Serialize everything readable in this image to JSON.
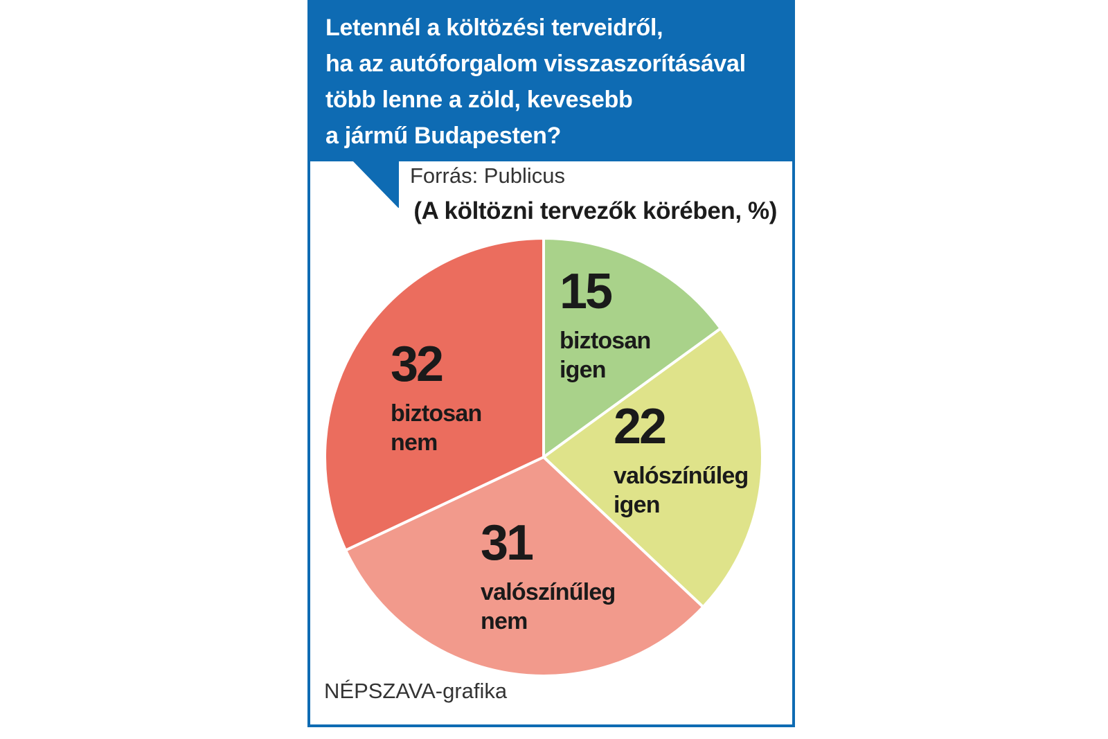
{
  "header": {
    "title": "Letennél a költözési terveidről,\nha az autóforgalom visszaszorításával\ntöbb lenne a zöld, kevesebb\na jármű Budapesten?"
  },
  "source": "Forrás: Publicus",
  "credit": "NÉPSZAVA-grafika",
  "colors": {
    "brand_blue": "#0e6bb3",
    "biztosan_igen": "#a9d28a",
    "valoszinuleg_igen": "#dfe38a",
    "valoszinuleg_nem": "#f29a8c",
    "biztosan_nem": "#eb6d5e"
  },
  "chart_data": {
    "type": "pie",
    "title": "(A költözni tervezők körében, %)",
    "unit": "%",
    "start": "12 o'clock, clockwise",
    "slices": [
      {
        "value": 15,
        "value_label": "15",
        "label_lines": [
          "biztosan",
          "igen"
        ],
        "color": "#a9d28a"
      },
      {
        "value": 22,
        "value_label": "22",
        "label_lines": [
          "valószínűleg",
          "igen"
        ],
        "color": "#dfe38a"
      },
      {
        "value": 31,
        "value_label": "31",
        "label_lines": [
          "valószínűleg",
          "nem"
        ],
        "color": "#f29a8c"
      },
      {
        "value": 32,
        "value_label": "32",
        "label_lines": [
          "biztosan",
          "nem"
        ],
        "color": "#eb6d5e"
      }
    ]
  }
}
